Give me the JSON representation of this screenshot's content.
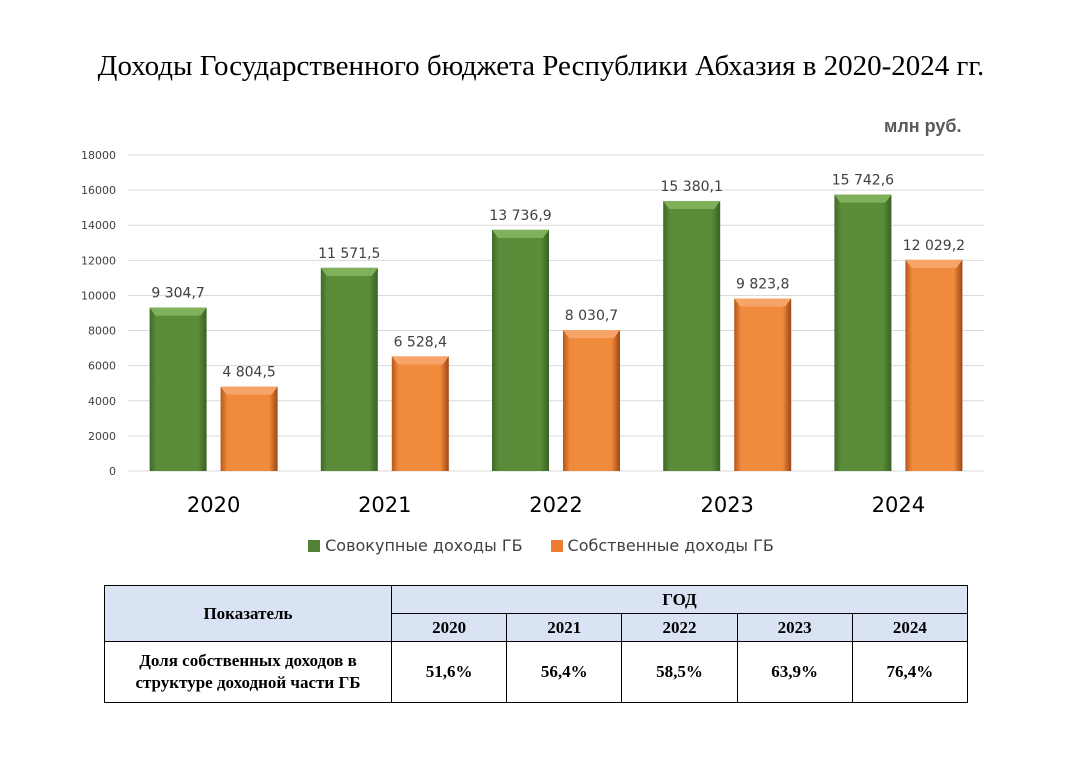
{
  "title": "Доходы Государственного бюджета Республики Абхазия в 2020-2024 гг.",
  "unit": "млн руб.",
  "colors": {
    "series_total": "#548235",
    "series_own": "#ed7d31",
    "grid": "#d9d9d9",
    "table_header": "#dae3f3"
  },
  "chart_data": {
    "type": "bar",
    "categories": [
      "2020",
      "2021",
      "2022",
      "2023",
      "2024"
    ],
    "series": [
      {
        "name": "Совокупные доходы ГБ",
        "values": [
          9304.7,
          11571.5,
          13736.9,
          15380.1,
          15742.6
        ],
        "labels": [
          "9 304,7",
          "11 571,5",
          "13 736,9",
          "15 380,1",
          "15 742,6"
        ]
      },
      {
        "name": "Собственные доходы ГБ",
        "values": [
          4804.5,
          6528.4,
          8030.7,
          9823.8,
          12029.2
        ],
        "labels": [
          "4 804,5",
          "6 528,4",
          "8 030,7",
          "9 823,8",
          "12 029,2"
        ]
      }
    ],
    "ylim": [
      0,
      18000
    ],
    "yticks": [
      "0",
      "2000",
      "4000",
      "6000",
      "8000",
      "10000",
      "12000",
      "14000",
      "16000",
      "18000"
    ],
    "grid": true,
    "legend": "bottom"
  },
  "table": {
    "indicator_header": "Показатель",
    "year_header": "ГОД",
    "years": [
      "2020",
      "2021",
      "2022",
      "2023",
      "2024"
    ],
    "row_label_line1": "Доля собственных доходов в",
    "row_label_line2": "структуре доходной части ГБ",
    "values": [
      "51,6%",
      "56,4%",
      "58,5%",
      "63,9%",
      "76,4%"
    ]
  }
}
